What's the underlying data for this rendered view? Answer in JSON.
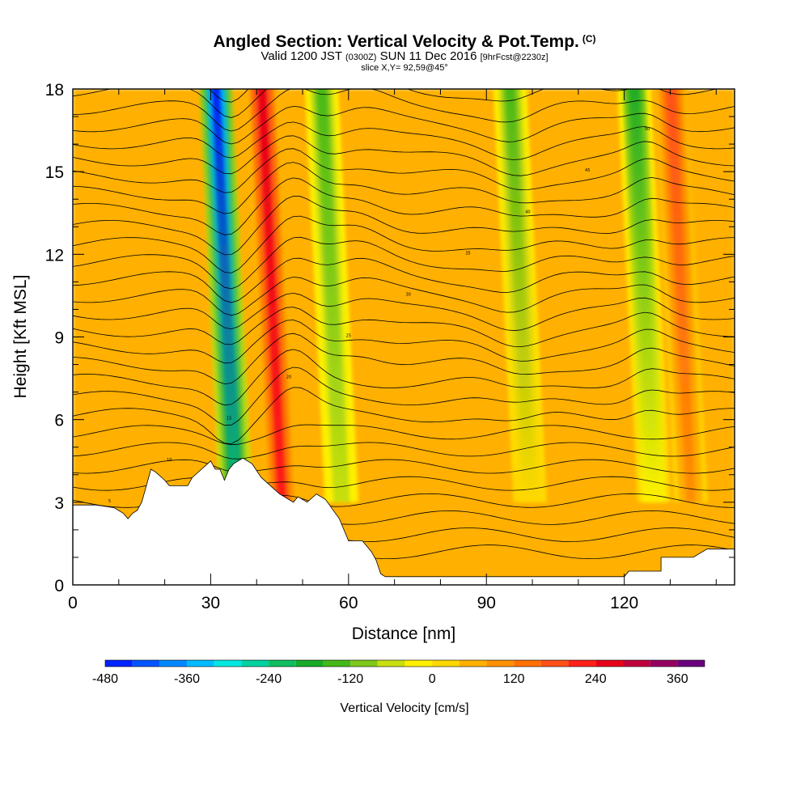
{
  "header": {
    "title": "Angled Section: Vertical Velocity & Pot.Temp.",
    "title_unit": "(C)",
    "valid_prefix": "Valid 1200 JST",
    "valid_utc": "(0300Z)",
    "valid_date": "SUN 11 Dec 2016",
    "forecast": "[9hrFcst@2230z]",
    "slice": "slice X,Y= 92,59@45°"
  },
  "chart_data": {
    "type": "heatmap",
    "xlabel": "Distance [nm]",
    "ylabel": "Height [Kft MSL]",
    "xlim": [
      0,
      144
    ],
    "ylim": [
      0,
      18
    ],
    "x_ticks": [
      "0",
      "30",
      "60",
      "90",
      "120"
    ],
    "y_ticks": [
      "0",
      "3",
      "6",
      "9",
      "12",
      "15",
      "18"
    ],
    "colorbar": {
      "title": "Vertical Velocity [cm/s]",
      "levels": [
        -480,
        -440,
        -400,
        -360,
        -320,
        -280,
        -240,
        -200,
        -160,
        -120,
        -80,
        -40,
        0,
        40,
        80,
        120,
        160,
        200,
        240,
        280,
        320,
        360,
        400
      ],
      "colors": [
        "#0022ff",
        "#0055ff",
        "#0088ff",
        "#00bbff",
        "#00e8e0",
        "#00d2a0",
        "#10be60",
        "#18aa28",
        "#44b818",
        "#80c81a",
        "#c8e010",
        "#fff000",
        "#ffd800",
        "#ffb000",
        "#ff9000",
        "#ff7000",
        "#ff5018",
        "#ff2018",
        "#e80018",
        "#c0003c",
        "#960060",
        "#6a007e"
      ],
      "tick_labels": [
        "-480",
        "-360",
        "-240",
        "-120",
        "0",
        "120",
        "240",
        "360"
      ]
    },
    "vertical_velocity_features": [
      {
        "x": 33,
        "top_value": -480,
        "bottom_value": -240,
        "note": "strong downdraft"
      },
      {
        "x": 43,
        "top_value": 240,
        "bottom_value": 200,
        "note": "strong updraft"
      },
      {
        "x": 56,
        "top_value": -160,
        "bottom_value": -80
      },
      {
        "x": 97,
        "top_value": -160,
        "bottom_value": 0
      },
      {
        "x": 124,
        "top_value": -200,
        "bottom_value": -40
      },
      {
        "x": 132,
        "top_value": 160,
        "bottom_value": 80
      }
    ],
    "contour_labels": [
      "5",
      "10",
      "15",
      "20",
      "25",
      "30",
      "35",
      "40",
      "45",
      "50"
    ]
  }
}
